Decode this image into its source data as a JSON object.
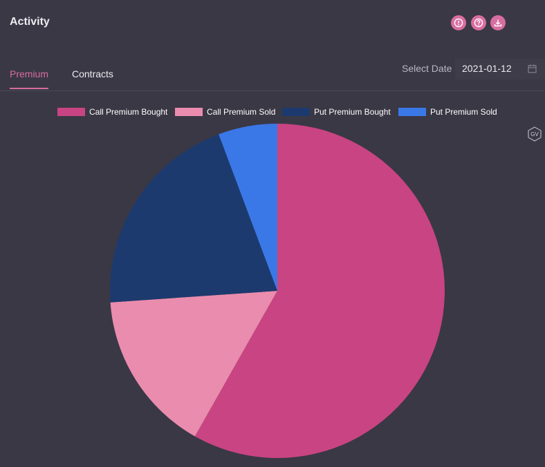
{
  "header": {
    "title": "Activity"
  },
  "toolbar": {
    "buttons": [
      {
        "name": "info-button",
        "icon": "alert-circle-icon"
      },
      {
        "name": "help-button",
        "icon": "question-circle-icon"
      },
      {
        "name": "download-button",
        "icon": "download-icon"
      }
    ]
  },
  "tabs": [
    {
      "label": "Premium",
      "active": true
    },
    {
      "label": "Contracts",
      "active": false
    }
  ],
  "date_picker": {
    "label": "Select Date",
    "value": "2021-01-12"
  },
  "watermark": {
    "text": "GV"
  },
  "colors": {
    "background": "#3a3845",
    "accent": "#d76da0",
    "call_bought": "#c94483",
    "call_sold": "#ea8cad",
    "put_bought": "#1c3a6e",
    "put_sold": "#3b78e7"
  },
  "chart_data": {
    "type": "pie",
    "title": "",
    "start_angle_deg": 0,
    "direction": "clockwise",
    "series": [
      {
        "name": "Call Premium Bought",
        "value": 58.2,
        "color": "#c94483"
      },
      {
        "name": "Call Premium Sold",
        "value": 15.7,
        "color": "#ea8cad"
      },
      {
        "name": "Put Premium Bought",
        "value": 20.4,
        "color": "#1c3a6e"
      },
      {
        "name": "Put Premium Sold",
        "value": 5.7,
        "color": "#3b78e7"
      }
    ],
    "legend_position": "top"
  }
}
